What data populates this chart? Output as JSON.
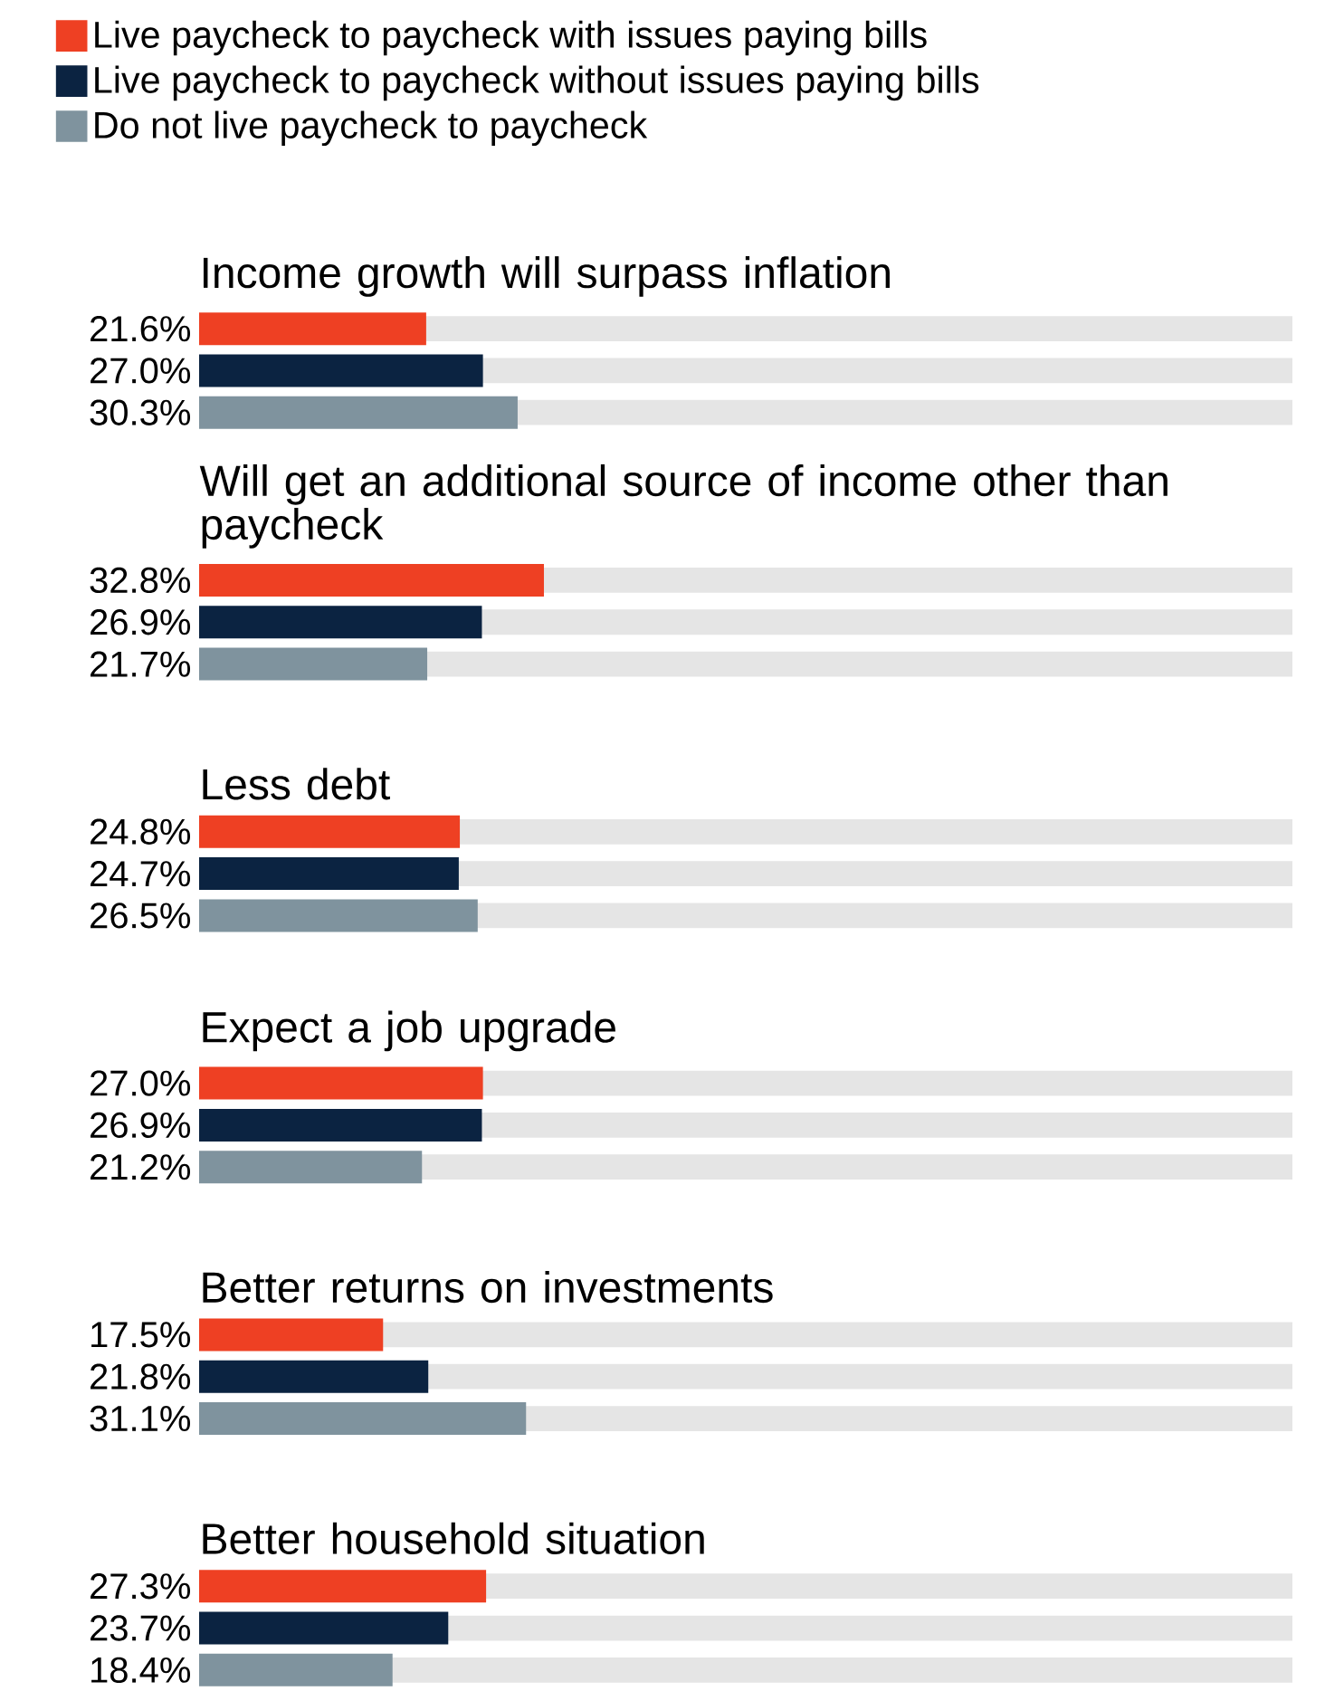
{
  "chart_data": {
    "type": "bar",
    "orientation": "horizontal",
    "legend": "top left",
    "xlim": [
      0,
      104
    ],
    "categories": [
      "Income growth will surpass inflation",
      "Will get an additional source of income other than paycheck",
      "Less debt",
      "Expect a job upgrade",
      "Better returns on investments",
      "Better household situation"
    ],
    "series": [
      {
        "name": "Live paycheck to paycheck with issues paying bills",
        "color": "#ee4023",
        "values": [
          21.6,
          32.8,
          24.8,
          27.0,
          17.5,
          27.3
        ],
        "value_labels": [
          "21.6%",
          "32.8%",
          "24.8%",
          "27.0%",
          "17.5%",
          "27.3%"
        ]
      },
      {
        "name": "Live paycheck to paycheck without issues paying bills",
        "color": "#0b2341",
        "values": [
          27.0,
          26.9,
          24.7,
          26.9,
          21.8,
          23.7
        ],
        "value_labels": [
          "27.0%",
          "26.9%",
          "24.7%",
          "26.9%",
          "21.8%",
          "23.7%"
        ]
      },
      {
        "name": "Do not live paycheck to paycheck",
        "color": "#7f939e",
        "values": [
          30.3,
          21.7,
          26.5,
          21.2,
          31.1,
          18.4
        ],
        "value_labels": [
          "30.3%",
          "21.7%",
          "26.5%",
          "21.2%",
          "31.1%",
          "18.4%"
        ]
      }
    ]
  }
}
